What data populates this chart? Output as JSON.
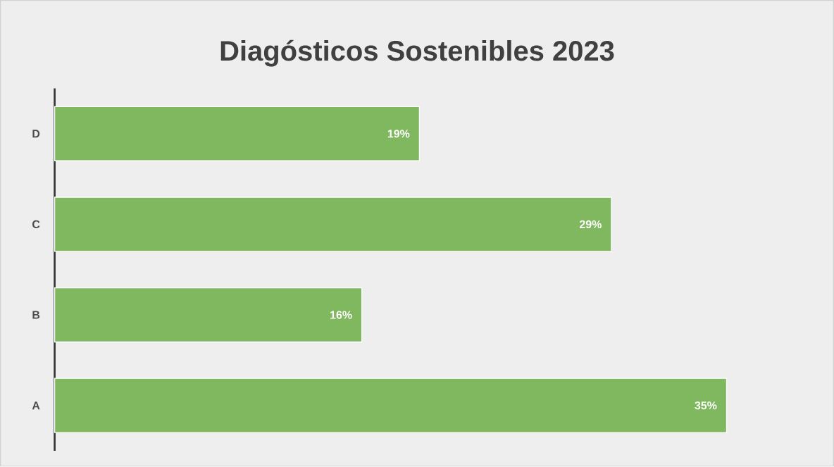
{
  "chart_data": {
    "type": "bar",
    "orientation": "horizontal",
    "title": "Diagósticos Sostenibles 2023",
    "categories": [
      "D",
      "C",
      "B",
      "A"
    ],
    "values": [
      19,
      29,
      16,
      35
    ],
    "value_labels": [
      "19%",
      "29%",
      "16%",
      "35%"
    ],
    "color": "#80b860"
  }
}
